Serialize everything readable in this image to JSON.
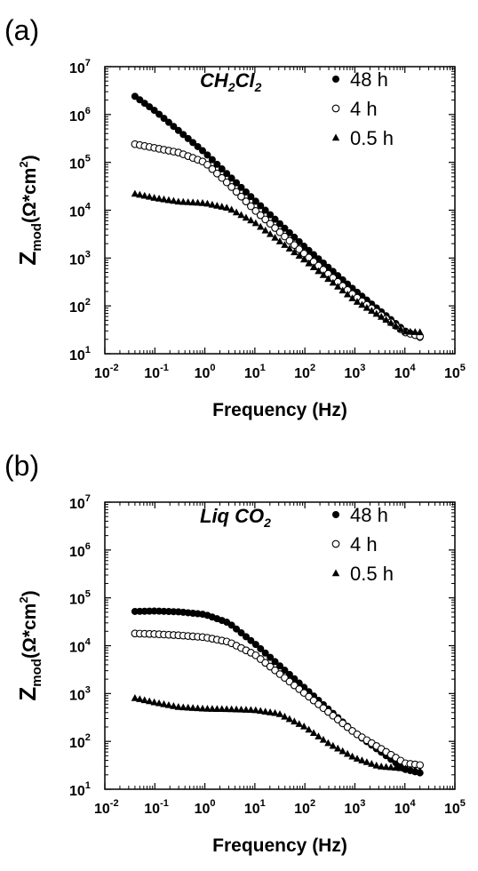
{
  "chart_data": [
    {
      "type": "scatter",
      "panel_label": "(a)",
      "annotation": {
        "main": "CH",
        "sub1": "2",
        "mid": "Cl",
        "sub2": "2"
      },
      "xlabel": "Frequency (Hz)",
      "ylabel": {
        "main": "Z",
        "sub": "mod",
        "rest": "(Ω*cm",
        "sup": "2",
        "close": ")"
      },
      "x_scale": "log",
      "y_scale": "log",
      "xlim": [
        0.01,
        100000
      ],
      "ylim": [
        10,
        10000000
      ],
      "x_ticks": [
        {
          "base": "10",
          "exp": "-2"
        },
        {
          "base": "10",
          "exp": "-1"
        },
        {
          "base": "10",
          "exp": "0"
        },
        {
          "base": "10",
          "exp": "1"
        },
        {
          "base": "10",
          "exp": "2"
        },
        {
          "base": "10",
          "exp": "3"
        },
        {
          "base": "10",
          "exp": "4"
        },
        {
          "base": "10",
          "exp": "5"
        }
      ],
      "y_ticks": [
        {
          "base": "10",
          "exp": "1"
        },
        {
          "base": "10",
          "exp": "2"
        },
        {
          "base": "10",
          "exp": "3"
        },
        {
          "base": "10",
          "exp": "4"
        },
        {
          "base": "10",
          "exp": "5"
        },
        {
          "base": "10",
          "exp": "6"
        },
        {
          "base": "10",
          "exp": "7"
        }
      ],
      "grid": false,
      "legend_position": "top-right",
      "series": [
        {
          "name": "48 h",
          "marker": "filled-circle",
          "x": [
            0.04,
            0.1,
            1,
            10,
            100,
            1000,
            10000,
            20000
          ],
          "y": [
            2400000,
            1200000,
            160000,
            16000,
            1700,
            210,
            30,
            22
          ]
        },
        {
          "name": "4 h",
          "marker": "open-circle",
          "x": [
            0.04,
            0.1,
            0.3,
            1,
            3,
            10,
            100,
            1000,
            10000,
            20000
          ],
          "y": [
            240000,
            200000,
            160000,
            100000,
            35000,
            10000,
            1200,
            160,
            28,
            23
          ]
        },
        {
          "name": "0.5 h",
          "marker": "filled-triangle",
          "x": [
            0.04,
            0.1,
            0.3,
            1,
            3,
            10,
            100,
            1000,
            10000,
            20000
          ],
          "y": [
            22000,
            18000,
            15000,
            14000,
            11000,
            5500,
            900,
            130,
            29,
            28
          ]
        }
      ]
    },
    {
      "type": "scatter",
      "panel_label": "(b)",
      "annotation": {
        "main": "Liq CO",
        "sub1": "2",
        "mid": "",
        "sub2": ""
      },
      "xlabel": "Frequency (Hz)",
      "ylabel": {
        "main": "Z",
        "sub": "mod",
        "rest": "(Ω*cm",
        "sup": "2",
        "close": ")"
      },
      "x_scale": "log",
      "y_scale": "log",
      "xlim": [
        0.01,
        100000
      ],
      "ylim": [
        10,
        10000000
      ],
      "x_ticks": [
        {
          "base": "10",
          "exp": "-2"
        },
        {
          "base": "10",
          "exp": "-1"
        },
        {
          "base": "10",
          "exp": "0"
        },
        {
          "base": "10",
          "exp": "1"
        },
        {
          "base": "10",
          "exp": "2"
        },
        {
          "base": "10",
          "exp": "3"
        },
        {
          "base": "10",
          "exp": "4"
        },
        {
          "base": "10",
          "exp": "5"
        }
      ],
      "y_ticks": [
        {
          "base": "10",
          "exp": "1"
        },
        {
          "base": "10",
          "exp": "2"
        },
        {
          "base": "10",
          "exp": "3"
        },
        {
          "base": "10",
          "exp": "4"
        },
        {
          "base": "10",
          "exp": "5"
        },
        {
          "base": "10",
          "exp": "6"
        },
        {
          "base": "10",
          "exp": "7"
        }
      ],
      "grid": false,
      "legend_position": "top-right",
      "series": [
        {
          "name": "48 h",
          "marker": "filled-circle",
          "x": [
            0.04,
            0.1,
            0.3,
            1,
            3,
            10,
            100,
            1000,
            10000,
            20000
          ],
          "y": [
            52000,
            53000,
            51000,
            45000,
            30000,
            11000,
            1300,
            150,
            26,
            22
          ]
        },
        {
          "name": "4 h",
          "marker": "open-circle",
          "x": [
            0.04,
            0.1,
            0.3,
            1,
            3,
            10,
            100,
            1000,
            10000,
            20000
          ],
          "y": [
            18000,
            17500,
            16500,
            15000,
            12000,
            6500,
            1000,
            150,
            35,
            32
          ]
        },
        {
          "name": "0.5 h",
          "marker": "filled-triangle",
          "x": [
            0.04,
            0.1,
            0.3,
            1,
            3,
            10,
            30,
            100,
            300,
            1000,
            3000,
            10000,
            20000
          ],
          "y": [
            800,
            650,
            520,
            480,
            470,
            450,
            380,
            200,
            90,
            45,
            30,
            27,
            24
          ]
        }
      ]
    }
  ]
}
